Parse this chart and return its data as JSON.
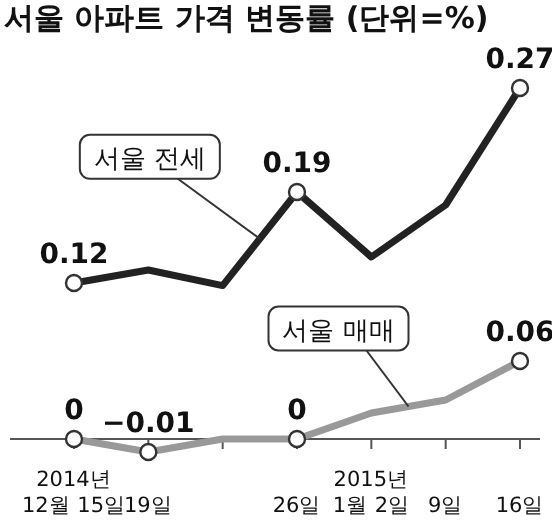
{
  "chart_data": {
    "type": "line",
    "title": "서울 아파트 가격 변동률 (단위=%)",
    "categories": [
      "2014년\n12월 15일",
      "19일",
      null,
      "26일",
      "2015년\n1월 2일",
      "9일",
      "16일"
    ],
    "series": [
      {
        "name": "서울 전세",
        "color": "#222222",
        "values": [
          0.12,
          0.13,
          0.118,
          0.19,
          0.14,
          0.18,
          0.27
        ],
        "value_labels": [
          "0.12",
          null,
          null,
          "0.19",
          null,
          null,
          "0.27"
        ]
      },
      {
        "name": "서울 매매",
        "color": "#999999",
        "values": [
          0,
          -0.01,
          0,
          0,
          0.02,
          0.03,
          0.06
        ],
        "value_labels": [
          "0",
          "−0.01",
          null,
          "0",
          null,
          null,
          "0.06"
        ]
      }
    ],
    "legend": false
  }
}
